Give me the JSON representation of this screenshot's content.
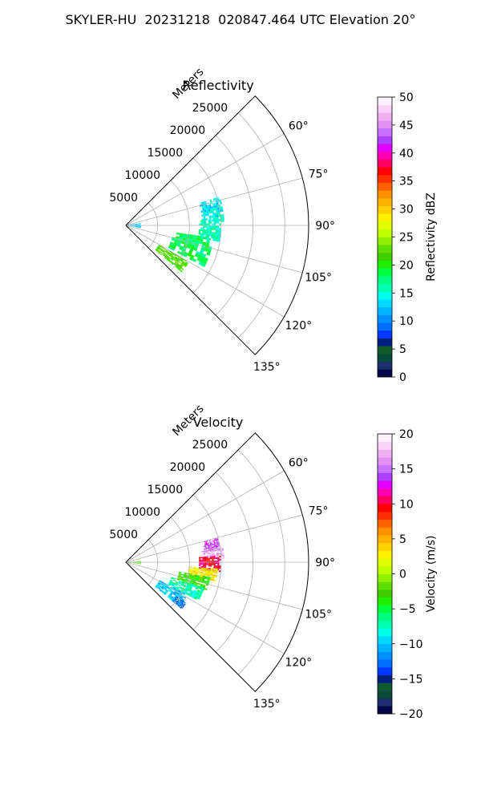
{
  "figure": {
    "title": "SKYLER-HU  20231218  020847.464 UTC Elevation 20°"
  },
  "chart_data": [
    {
      "type": "heatmap",
      "title": "Reflectivity",
      "radial_axis_label": "Meters",
      "radial_ticks": [
        5000,
        10000,
        15000,
        20000,
        25000
      ],
      "radial_tick_labels": [
        "5000",
        "10000",
        "15000",
        "20000",
        "25000"
      ],
      "angle_ticks": [
        60,
        75,
        90,
        105,
        120,
        135
      ],
      "angle_tick_labels": [
        "60°",
        "75°",
        "90°",
        "105°",
        "120°",
        "135°"
      ],
      "angle_range_deg": [
        45,
        135
      ],
      "range_max_m": 28750,
      "grid": true,
      "colorbar": {
        "label": "Reflectivity dBZ",
        "range": [
          0,
          50
        ],
        "ticks": [
          0,
          5,
          10,
          15,
          20,
          25,
          30,
          35,
          40,
          45,
          50
        ],
        "tick_labels": [
          "0",
          "5",
          "10",
          "15",
          "20",
          "25",
          "30",
          "35",
          "40",
          "45",
          "50"
        ],
        "colors": [
          "#000a4a",
          "#1f2e6e",
          "#0a4a3a",
          "#0f5a2a",
          "#002080",
          "#0038ff",
          "#0070ff",
          "#0090ff",
          "#00b4ff",
          "#00d8ff",
          "#00ffe8",
          "#00ffb0",
          "#00ff80",
          "#00ff40",
          "#20f000",
          "#40d000",
          "#60e000",
          "#90f000",
          "#c0ff00",
          "#e0ff00",
          "#fff000",
          "#ffd000",
          "#ffb000",
          "#ff9000",
          "#ff6000",
          "#ff3000",
          "#ff0000",
          "#ff0060",
          "#ff00b0",
          "#e000ff",
          "#b040ff",
          "#c870ff",
          "#e090f0",
          "#f0b0f0",
          "#f8d0f8",
          "#fff0ff"
        ]
      },
      "data_regions": [
        {
          "angle_min": 73,
          "angle_max": 88,
          "range_min": 12000,
          "range_max": 15500,
          "value": 14
        },
        {
          "angle_min": 86,
          "angle_max": 100,
          "range_min": 11500,
          "range_max": 15000,
          "value": 16
        },
        {
          "angle_min": 98,
          "angle_max": 118,
          "range_min": 7500,
          "range_max": 14000,
          "value": 18
        },
        {
          "angle_min": 120,
          "angle_max": 130,
          "range_min": 6000,
          "range_max": 11500,
          "value": 22
        },
        {
          "angle_min": 80,
          "angle_max": 100,
          "range_min": 200,
          "range_max": 2400,
          "value": 13
        }
      ]
    },
    {
      "type": "heatmap",
      "title": "Velocity",
      "radial_axis_label": "Meters",
      "radial_ticks": [
        5000,
        10000,
        15000,
        20000,
        25000
      ],
      "radial_tick_labels": [
        "5000",
        "10000",
        "15000",
        "20000",
        "25000"
      ],
      "angle_ticks": [
        60,
        75,
        90,
        105,
        120,
        135
      ],
      "angle_tick_labels": [
        "60°",
        "75°",
        "90°",
        "105°",
        "120°",
        "135°"
      ],
      "angle_range_deg": [
        45,
        135
      ],
      "range_max_m": 28750,
      "grid": true,
      "colorbar": {
        "label": "Velocity (m/s)",
        "range": [
          -20,
          20
        ],
        "ticks": [
          -20,
          -15,
          -10,
          -5,
          0,
          5,
          10,
          15,
          20
        ],
        "tick_labels": [
          "−20",
          "−15",
          "−10",
          "−5",
          "0",
          "5",
          "10",
          "15",
          "20"
        ],
        "colors": [
          "#000a4a",
          "#1f2e6e",
          "#0a4a3a",
          "#0f5a2a",
          "#002080",
          "#0038ff",
          "#0070ff",
          "#0090ff",
          "#00b4ff",
          "#00d8ff",
          "#00ffe8",
          "#00ffb0",
          "#00ff80",
          "#00ff40",
          "#20f000",
          "#40d000",
          "#60e000",
          "#90f000",
          "#c0ff00",
          "#e0ff00",
          "#fff000",
          "#ffd000",
          "#ffb000",
          "#ff9000",
          "#ff6000",
          "#ff3000",
          "#ff0000",
          "#ff0060",
          "#ff00b0",
          "#e000ff",
          "#b040ff",
          "#c870ff",
          "#e090f0",
          "#f0b0f0",
          "#f8d0f8",
          "#fff0ff"
        ]
      },
      "data_regions": [
        {
          "angle_min": 75,
          "angle_max": 83,
          "range_min": 12500,
          "range_max": 15000,
          "value": 14
        },
        {
          "angle_min": 81,
          "angle_max": 88,
          "range_min": 12000,
          "range_max": 15500,
          "value": 17
        },
        {
          "angle_min": 86,
          "angle_max": 96,
          "range_min": 11500,
          "range_max": 15000,
          "value": 10
        },
        {
          "angle_min": 94,
          "angle_max": 102,
          "range_min": 10000,
          "range_max": 14500,
          "value": 3
        },
        {
          "angle_min": 100,
          "angle_max": 110,
          "range_min": 8500,
          "range_max": 13500,
          "value": -3
        },
        {
          "angle_min": 108,
          "angle_max": 118,
          "range_min": 7500,
          "range_max": 13000,
          "value": -7
        },
        {
          "angle_min": 118,
          "angle_max": 130,
          "range_min": 6000,
          "range_max": 11000,
          "value": -10
        },
        {
          "angle_min": 124,
          "angle_max": 130,
          "range_min": 9500,
          "range_max": 11500,
          "value": -13
        },
        {
          "angle_min": 85,
          "angle_max": 98,
          "range_min": 200,
          "range_max": 2400,
          "value": -2
        }
      ]
    }
  ]
}
